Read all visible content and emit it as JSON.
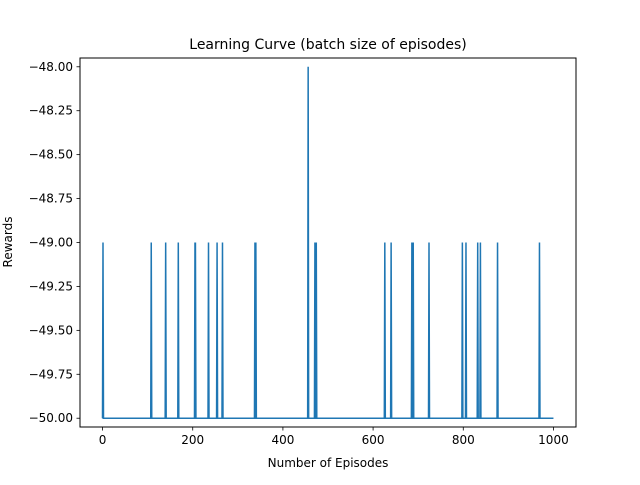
{
  "chart_data": {
    "type": "line",
    "title": "Learning Curve (batch size of episodes)",
    "xlabel": "Number of Episodes",
    "ylabel": "Rewards",
    "xlim": [
      -50,
      1050
    ],
    "ylim": [
      -50.05,
      -47.95
    ],
    "xticks": [
      0,
      200,
      400,
      600,
      800,
      1000
    ],
    "yticks": [
      -50.0,
      -49.75,
      -49.5,
      -49.25,
      -49.0,
      -48.75,
      -48.5,
      -48.25,
      -48.0
    ],
    "ytick_labels": [
      "−50.00",
      "−49.75",
      "−49.50",
      "−49.25",
      "−49.00",
      "−48.75",
      "−48.50",
      "−48.25",
      "−48.00"
    ],
    "grid": false,
    "line_color": "#1f77b4",
    "baseline": -50,
    "x_end": 1000,
    "spikes": [
      {
        "x": 1,
        "y": -49
      },
      {
        "x": 108,
        "y": -49
      },
      {
        "x": 140,
        "y": -49
      },
      {
        "x": 168,
        "y": -49
      },
      {
        "x": 205,
        "y": -49
      },
      {
        "x": 206,
        "y": -49
      },
      {
        "x": 235,
        "y": -49
      },
      {
        "x": 254,
        "y": -49
      },
      {
        "x": 266,
        "y": -49
      },
      {
        "x": 338,
        "y": -49
      },
      {
        "x": 340,
        "y": -49
      },
      {
        "x": 456,
        "y": -48
      },
      {
        "x": 471,
        "y": -49
      },
      {
        "x": 474,
        "y": -49
      },
      {
        "x": 626,
        "y": -49
      },
      {
        "x": 640,
        "y": -49
      },
      {
        "x": 686,
        "y": -49
      },
      {
        "x": 689,
        "y": -49
      },
      {
        "x": 724,
        "y": -49
      },
      {
        "x": 798,
        "y": -49
      },
      {
        "x": 806,
        "y": -49
      },
      {
        "x": 832,
        "y": -49
      },
      {
        "x": 838,
        "y": -49
      },
      {
        "x": 876,
        "y": -49
      },
      {
        "x": 969,
        "y": -49
      }
    ]
  }
}
